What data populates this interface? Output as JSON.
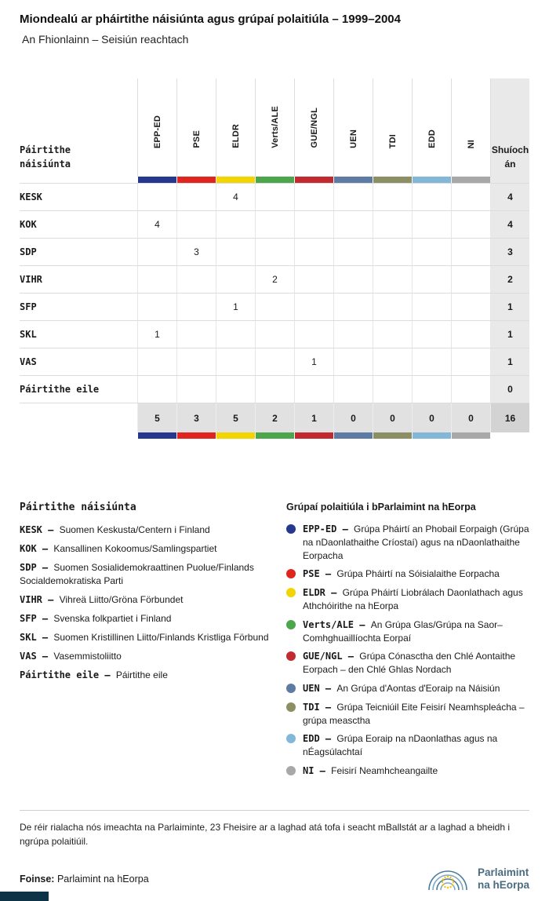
{
  "header": {
    "title": "Miondealú ar pháirtithe náisiúnta agus grúpaí polaitiúla – 1999–2004",
    "subtitle": "An Fhionlainn – Seisiún reachtach"
  },
  "chart_data": {
    "type": "table",
    "title": "Miondealú ar pháirtithe náisiúnta agus grúpaí polaitiúla – 1999–2004",
    "subtitle": "An Fhionlainn – Seisiún reachtach",
    "row_axis_label": "Páirtithe\nnáisiúnta",
    "seats_label": "Shuíoch\nán",
    "columns": [
      {
        "id": "EPP-ED",
        "color": "#24388f"
      },
      {
        "id": "PSE",
        "color": "#e0251f"
      },
      {
        "id": "ELDR",
        "color": "#f2d500"
      },
      {
        "id": "Verts/ALE",
        "color": "#4ca64c"
      },
      {
        "id": "GUE/NGL",
        "color": "#c22a30"
      },
      {
        "id": "UEN",
        "color": "#5e7ca3"
      },
      {
        "id": "TDI",
        "color": "#8c8f63"
      },
      {
        "id": "EDD",
        "color": "#83b7d8"
      },
      {
        "id": "NI",
        "color": "#a8a8a8"
      }
    ],
    "rows": [
      {
        "party": "KESK",
        "values": [
          "",
          "",
          "4",
          "",
          "",
          "",
          "",
          "",
          ""
        ],
        "total": "4"
      },
      {
        "party": "KOK",
        "values": [
          "4",
          "",
          "",
          "",
          "",
          "",
          "",
          "",
          ""
        ],
        "total": "4"
      },
      {
        "party": "SDP",
        "values": [
          "",
          "3",
          "",
          "",
          "",
          "",
          "",
          "",
          ""
        ],
        "total": "3"
      },
      {
        "party": "VIHR",
        "values": [
          "",
          "",
          "",
          "2",
          "",
          "",
          "",
          "",
          ""
        ],
        "total": "2"
      },
      {
        "party": "SFP",
        "values": [
          "",
          "",
          "1",
          "",
          "",
          "",
          "",
          "",
          ""
        ],
        "total": "1"
      },
      {
        "party": "SKL",
        "values": [
          "1",
          "",
          "",
          "",
          "",
          "",
          "",
          "",
          ""
        ],
        "total": "1"
      },
      {
        "party": "VAS",
        "values": [
          "",
          "",
          "",
          "",
          "1",
          "",
          "",
          "",
          ""
        ],
        "total": "1"
      },
      {
        "party": "Páirtithe eile",
        "values": [
          "",
          "",
          "",
          "",
          "",
          "",
          "",
          "",
          ""
        ],
        "total": "0"
      }
    ],
    "totals": {
      "values": [
        "5",
        "3",
        "5",
        "2",
        "1",
        "0",
        "0",
        "0",
        "0"
      ],
      "total": "16"
    }
  },
  "legend_left": {
    "title": "Páirtithe náisiúnta",
    "items": [
      {
        "abbr": "KESK",
        "name": "Suomen Keskusta/Centern i Finland"
      },
      {
        "abbr": "KOK",
        "name": "Kansallinen Kokoomus/Samlingspartiet"
      },
      {
        "abbr": "SDP",
        "name": "Suomen Sosialidemokraattinen Puolue/Finlands Socialdemokratiska Parti"
      },
      {
        "abbr": "VIHR",
        "name": "Vihreä Liitto/Gröna Förbundet"
      },
      {
        "abbr": "SFP",
        "name": "Svenska folkpartiet i Finland"
      },
      {
        "abbr": "SKL",
        "name": "Suomen Kristillinen Liitto/Finlands Kristliga Förbund"
      },
      {
        "abbr": "VAS",
        "name": "Vasemmistoliitto"
      },
      {
        "abbr": "Páirtithe eile",
        "name": "Páirtithe eile"
      }
    ]
  },
  "legend_right": {
    "title": "Grúpaí polaitiúla i bParlaimint na hEorpa",
    "items": [
      {
        "abbr": "EPP-ED",
        "text": "Grúpa Pháirtí an Phobail Eorpaigh (Grúpa na nDaonlathaithe Críostaí) agus na nDaonlathaithe Eorpacha"
      },
      {
        "abbr": "PSE",
        "text": "Grúpa Pháirtí na Sóisialaithe Eorpacha"
      },
      {
        "abbr": "ELDR",
        "text": "Grúpa Pháirtí Liobrálach Daonlathach agus Athchóirithe na hEorpa"
      },
      {
        "abbr": "Verts/ALE",
        "text": "An Grúpa Glas/Grúpa na Saor–Comhghuaillíochta Eorpaí"
      },
      {
        "abbr": "GUE/NGL",
        "text": "Grúpa Cónasctha den Chlé Aontaithe Eorpach – den Chlé Ghlas Nordach"
      },
      {
        "abbr": "UEN",
        "text": "An Grúpa d'Aontas d'Eoraip na Náisiún"
      },
      {
        "abbr": "TDI",
        "text": "Grúpa Teicniúil Eite Feisirí Neamhspleácha – grúpa measctha"
      },
      {
        "abbr": "EDD",
        "text": "Grúpa Eoraip na nDaonlathas agus na nÉagsúlachtaí"
      },
      {
        "abbr": "NI",
        "text": "Feisirí Neamhcheangailte"
      }
    ]
  },
  "footer": {
    "note": "De réir rialacha nós imeachta na Parlaiminte, 23 Fheisire ar a laghad atá tofa i seacht mBallstát ar a laghad a bheidh i ngrúpa polaitiúil.",
    "source_label": "Foinse:",
    "source_value": "Parlaimint na hEorpa",
    "logo_line1": "Parlaimint",
    "logo_line2": "na hEorpa"
  }
}
